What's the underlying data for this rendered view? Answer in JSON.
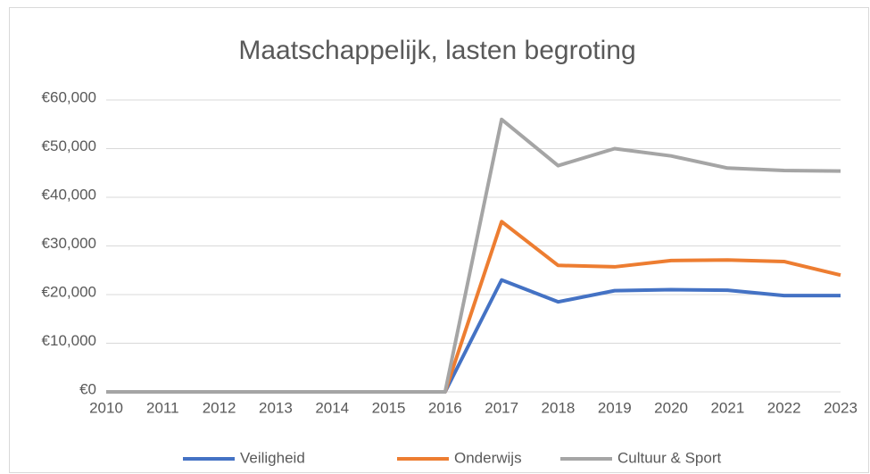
{
  "chart_data": {
    "type": "line",
    "title": "Maatschappelijk, lasten begroting",
    "x": [
      2010,
      2011,
      2012,
      2013,
      2014,
      2015,
      2016,
      2017,
      2018,
      2019,
      2020,
      2021,
      2022,
      2023
    ],
    "xlim": [
      2010,
      2023
    ],
    "xticks": [
      2010,
      2011,
      2012,
      2013,
      2014,
      2015,
      2016,
      2017,
      2018,
      2019,
      2020,
      2021,
      2022,
      2023
    ],
    "ylim": [
      0,
      60000
    ],
    "yticks": [
      {
        "value": 0,
        "label": "€0"
      },
      {
        "value": 10000,
        "label": "€10,000"
      },
      {
        "value": 20000,
        "label": "€20,000"
      },
      {
        "value": 30000,
        "label": "€30,000"
      },
      {
        "value": 40000,
        "label": "€40,000"
      },
      {
        "value": 50000,
        "label": "€50,000"
      },
      {
        "value": 60000,
        "label": "€60,000"
      }
    ],
    "grid": true,
    "legend": "bottom",
    "series": [
      {
        "name": "Veiligheid",
        "color": "#4472c4",
        "values": [
          0,
          0,
          0,
          0,
          0,
          0,
          0,
          23000,
          18500,
          20800,
          21000,
          20900,
          19800,
          19800
        ]
      },
      {
        "name": "Onderwijs",
        "color": "#ed7d31",
        "values": [
          0,
          0,
          0,
          0,
          0,
          0,
          0,
          35000,
          26000,
          25700,
          27000,
          27100,
          26800,
          24000
        ]
      },
      {
        "name": "Cultuur & Sport",
        "color": "#a5a5a5",
        "values": [
          0,
          0,
          0,
          0,
          0,
          0,
          0,
          56000,
          46500,
          50000,
          48500,
          46000,
          45500,
          45400
        ]
      }
    ]
  }
}
